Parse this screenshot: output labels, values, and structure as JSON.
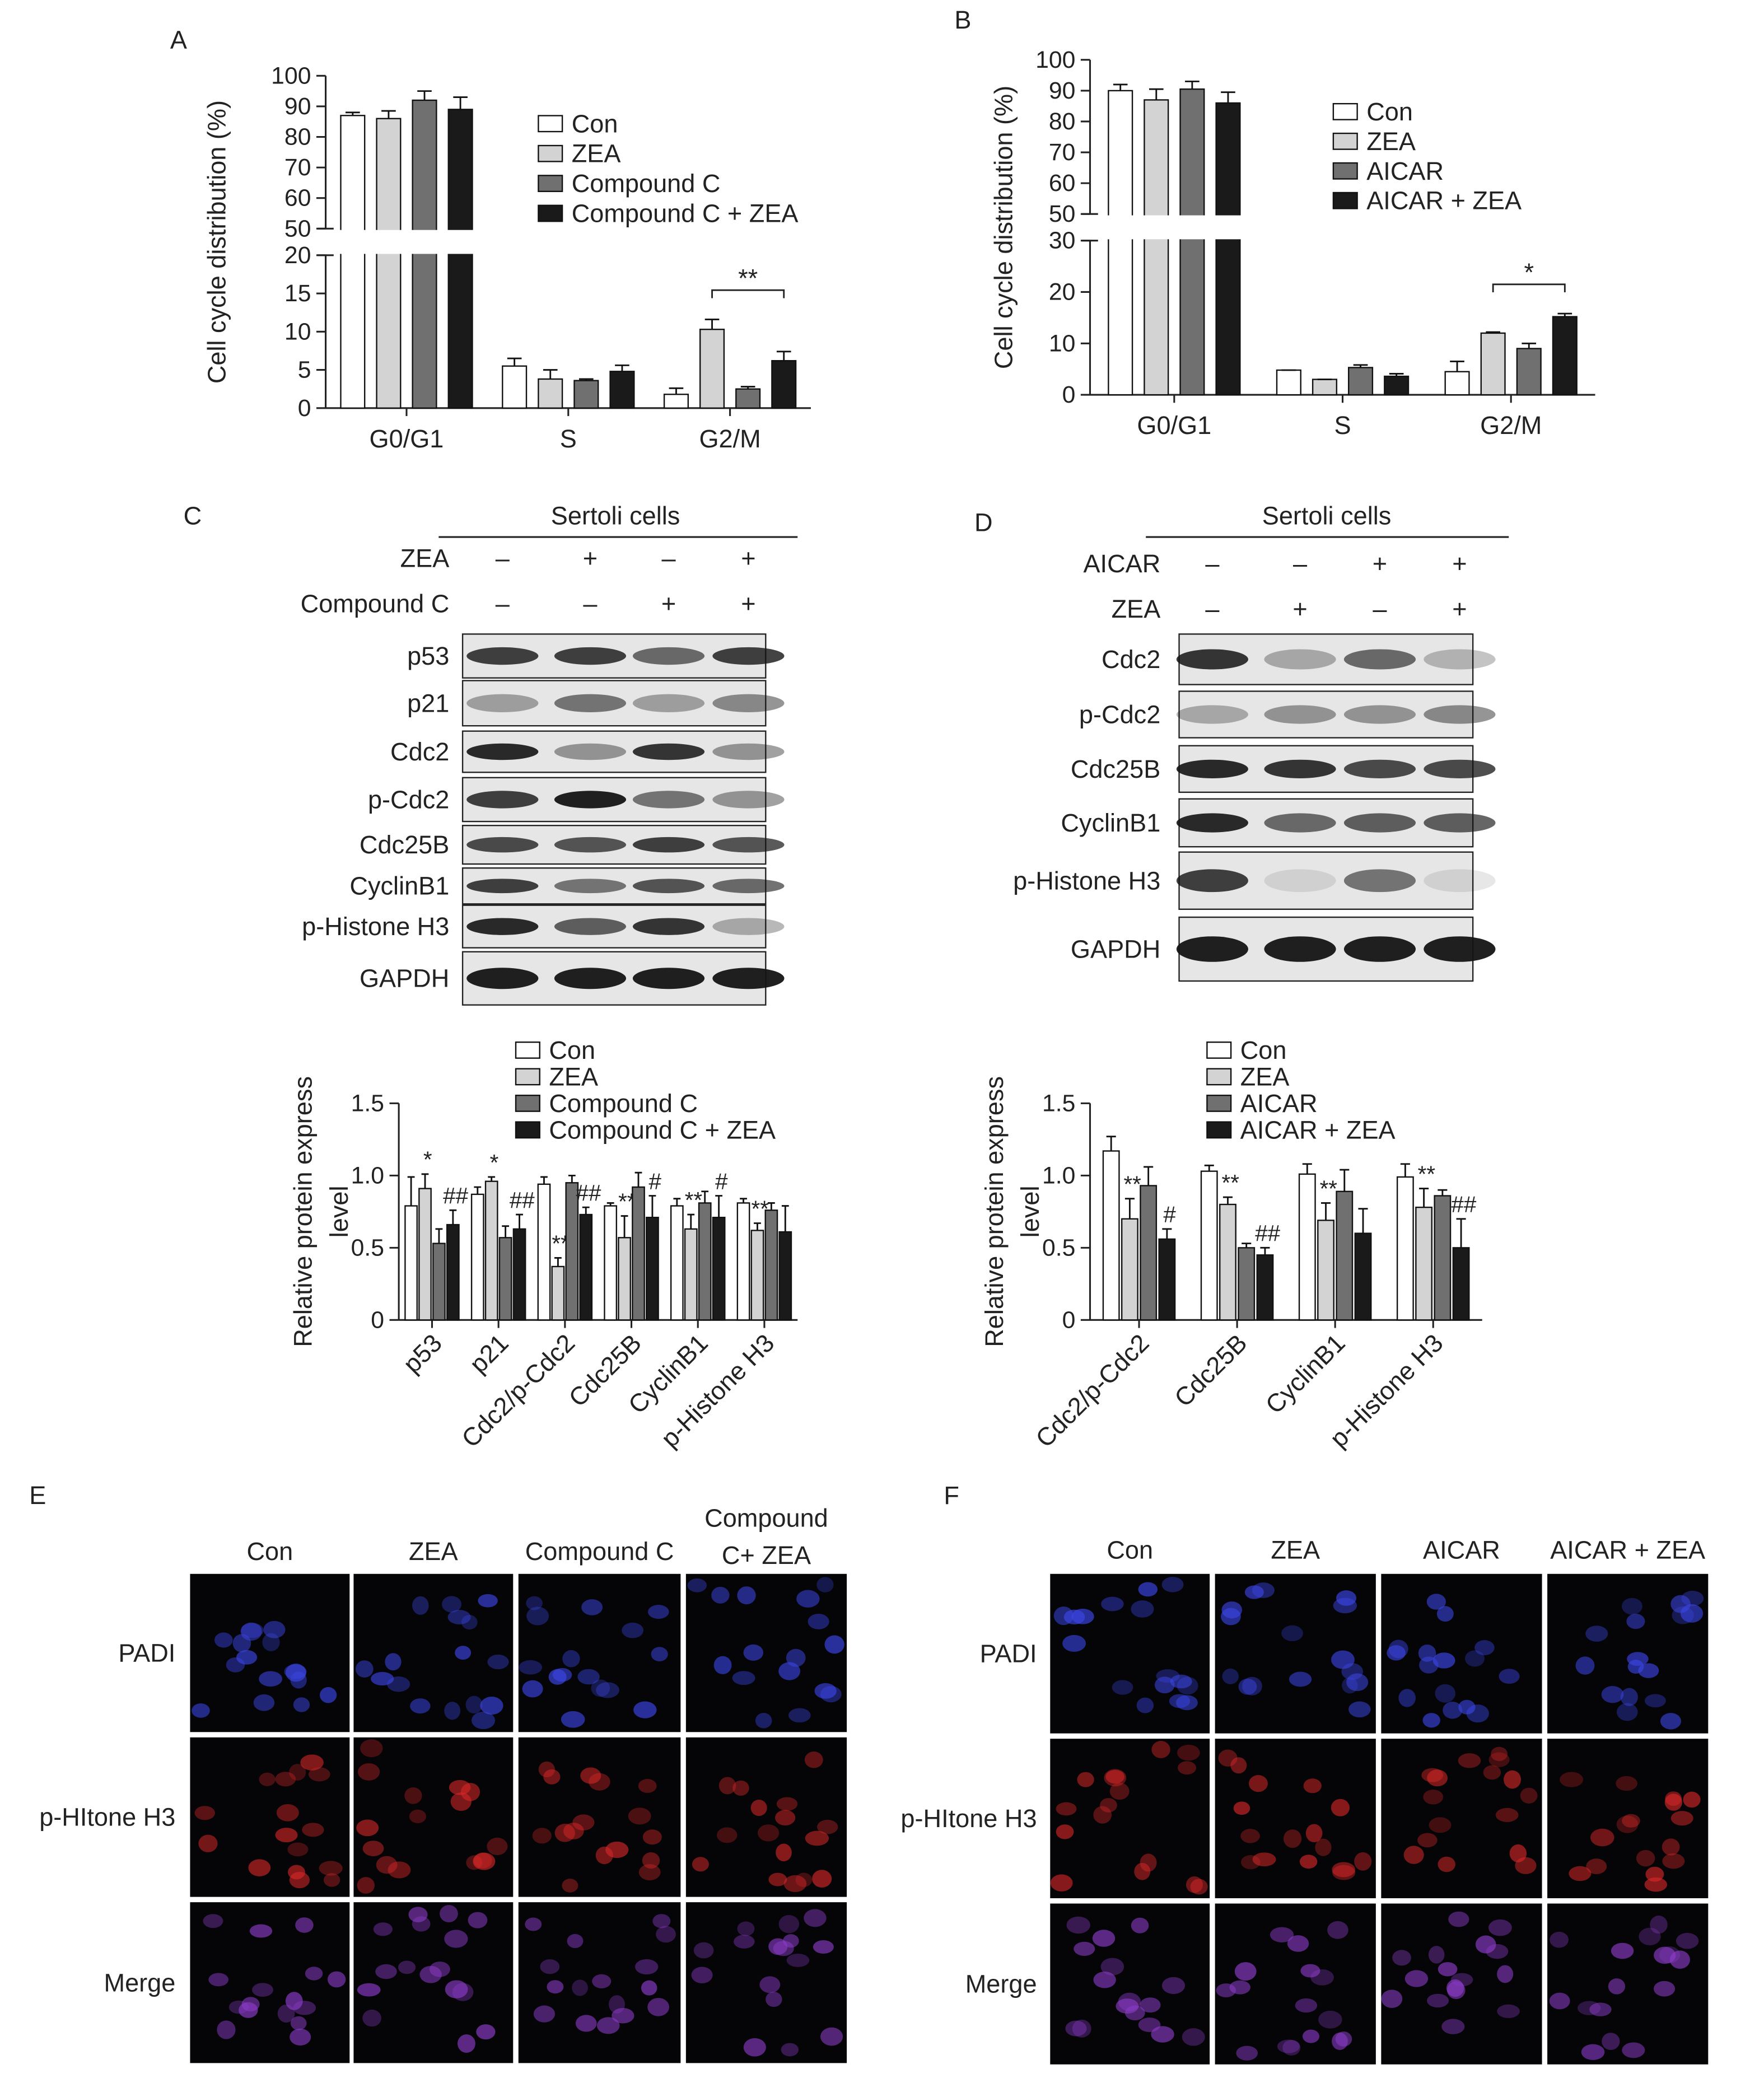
{
  "chart_data": [
    {
      "type": "bar",
      "panel": "A",
      "ylabel": "Cell cycle distribution (%)",
      "categories": [
        "G0/G1",
        "S",
        "G2/M"
      ],
      "series": [
        {
          "name": "Con",
          "color": "#ffffff",
          "values": [
            87,
            5.5,
            1.8
          ],
          "errors": [
            1,
            1,
            0.8
          ]
        },
        {
          "name": "ZEA",
          "color": "#d3d3d3",
          "values": [
            86,
            3.8,
            10.3
          ],
          "errors": [
            2.5,
            1.2,
            1.3
          ]
        },
        {
          "name": "Compound C",
          "color": "#707070",
          "values": [
            92,
            3.6,
            2.5
          ],
          "errors": [
            3,
            0.2,
            0.3
          ]
        },
        {
          "name": "Compound C + ZEA",
          "color": "#1a1a1a",
          "values": [
            89,
            4.8,
            6.2
          ],
          "errors": [
            4,
            0.8,
            1.2
          ]
        }
      ],
      "ylim": [
        0,
        100
      ],
      "ybreak": [
        20,
        50
      ],
      "yticks": [
        0,
        5,
        10,
        15,
        20,
        50,
        60,
        70,
        80,
        90,
        100
      ],
      "annotations": [
        {
          "text": "**"
        }
      ]
    },
    {
      "type": "bar",
      "panel": "B",
      "ylabel": "Cell cycle distribution (%)",
      "categories": [
        "G0/G1",
        "S",
        "G2/M"
      ],
      "series": [
        {
          "name": "Con",
          "color": "#ffffff",
          "values": [
            90,
            4.8,
            4.5
          ],
          "errors": [
            2,
            0,
            2
          ]
        },
        {
          "name": "ZEA",
          "color": "#d3d3d3",
          "values": [
            87,
            3,
            12
          ],
          "errors": [
            3.5,
            0,
            0.2
          ]
        },
        {
          "name": "AICAR",
          "color": "#707070",
          "values": [
            90.5,
            5.3,
            9
          ],
          "errors": [
            2.5,
            0.5,
            1
          ]
        },
        {
          "name": "AICAR + ZEA",
          "color": "#1a1a1a",
          "values": [
            86,
            3.6,
            15.2
          ],
          "errors": [
            3.5,
            0.5,
            0.6
          ]
        }
      ],
      "ylim": [
        0,
        100
      ],
      "ybreak": [
        30,
        50
      ],
      "yticks": [
        0,
        10,
        20,
        30,
        50,
        60,
        70,
        80,
        90,
        100
      ],
      "annotations": [
        {
          "text": "*"
        }
      ]
    },
    {
      "type": "bar",
      "ylabel": [
        "Relative protein express",
        "level"
      ],
      "categories": [
        "p53",
        "p21",
        "Cdc2/p-Cdc2",
        "Cdc25B",
        "CyclinB1",
        "p-Histone H3"
      ],
      "series": [
        {
          "name": "Con",
          "color": "#ffffff",
          "values": [
            0.79,
            0.87,
            0.94,
            0.79,
            0.79,
            0.81
          ],
          "errors": [
            0.2,
            0.05,
            0.05,
            0.02,
            0.05,
            0.03
          ]
        },
        {
          "name": "ZEA",
          "color": "#d3d3d3",
          "values": [
            0.91,
            0.96,
            0.37,
            0.57,
            0.63,
            0.62
          ],
          "errors": [
            0.1,
            0.03,
            0.06,
            0.15,
            0.1,
            0.05
          ],
          "annotations": [
            "*",
            "*",
            "**",
            "**",
            "**",
            "**"
          ]
        },
        {
          "name": "Compound C",
          "color": "#707070",
          "values": [
            0.53,
            0.57,
            0.95,
            0.92,
            0.81,
            0.76
          ],
          "errors": [
            0.1,
            0.08,
            0.05,
            0.1,
            0.08,
            0.05
          ]
        },
        {
          "name": "Compound C + ZEA",
          "color": "#1a1a1a",
          "values": [
            0.66,
            0.63,
            0.73,
            0.71,
            0.71,
            0.61
          ],
          "errors": [
            0.1,
            0.1,
            0.05,
            0.15,
            0.15,
            0.18
          ],
          "annotations": [
            "##",
            "##",
            "##",
            "#",
            "#",
            null
          ]
        }
      ],
      "ylim": [
        0,
        1.5
      ],
      "yticks": [
        0,
        0.5,
        {
          "value": 1,
          "label": "1.0"
        },
        1.5
      ]
    },
    {
      "type": "bar",
      "ylabel": [
        "Relative protein express",
        "level"
      ],
      "categories": [
        "Cdc2/p-Cdc2",
        "Cdc25B",
        "CyclinB1",
        "p-Histone H3"
      ],
      "series": [
        {
          "name": "Con",
          "color": "#ffffff",
          "values": [
            1.17,
            1.03,
            1.01,
            0.99
          ],
          "errors": [
            0.1,
            0.04,
            0.07,
            0.09
          ]
        },
        {
          "name": "ZEA",
          "color": "#d3d3d3",
          "values": [
            0.7,
            0.8,
            0.69,
            0.78
          ],
          "errors": [
            0.14,
            0.05,
            0.12,
            0.13
          ],
          "annotations": [
            "**",
            "**",
            "**",
            "**"
          ]
        },
        {
          "name": "AICAR",
          "color": "#707070",
          "values": [
            0.93,
            0.5,
            0.89,
            0.86
          ],
          "errors": [
            0.13,
            0.03,
            0.15,
            0.04
          ]
        },
        {
          "name": "AICAR + ZEA",
          "color": "#1a1a1a",
          "values": [
            0.56,
            0.45,
            0.6,
            0.5
          ],
          "errors": [
            0.07,
            0.05,
            0.17,
            0.2
          ],
          "annotations": [
            "#",
            "##",
            null,
            "##"
          ]
        }
      ],
      "ylim": [
        0,
        1.5
      ],
      "yticks": [
        0,
        0.5,
        {
          "value": 1,
          "label": "1.0"
        },
        1.5
      ]
    }
  ],
  "blots": [
    {
      "panel": "C",
      "header": "Sertoli cells",
      "treatments": [
        {
          "name": "ZEA",
          "signs": [
            "–",
            "+",
            "–",
            "+"
          ]
        },
        {
          "name": "Compound C",
          "signs": [
            "–",
            "–",
            "+",
            "+"
          ]
        }
      ],
      "proteins": [
        "p53",
        "p21",
        "Cdc2",
        "p-Cdc2",
        "Cdc25B",
        "CyclinB1",
        "p-Histone H3",
        "GAPDH"
      ]
    },
    {
      "panel": "D",
      "header": "Sertoli cells",
      "treatments": [
        {
          "name": "AICAR",
          "signs": [
            "–",
            "–",
            "+",
            "+"
          ]
        },
        {
          "name": "ZEA",
          "signs": [
            "–",
            "+",
            "–",
            "+"
          ]
        }
      ],
      "proteins": [
        "Cdc2",
        "p-Cdc2",
        "Cdc25B",
        "CyclinB1",
        "p-Histone H3",
        "GAPDH"
      ]
    }
  ],
  "microscopy": [
    {
      "panel": "E",
      "columns": [
        [
          "Con"
        ],
        [
          "ZEA"
        ],
        [
          "Compound C"
        ],
        [
          "Compound",
          "C+ ZEA"
        ]
      ],
      "rows": [
        "PADI",
        "p-HItone H3",
        "Merge"
      ]
    },
    {
      "panel": "F",
      "columns": [
        [
          "Con"
        ],
        [
          "ZEA"
        ],
        [
          "AICAR"
        ],
        [
          "AICAR + ZEA"
        ]
      ],
      "rows": [
        "PADI",
        "p-HItone H3",
        "Merge"
      ]
    }
  ]
}
